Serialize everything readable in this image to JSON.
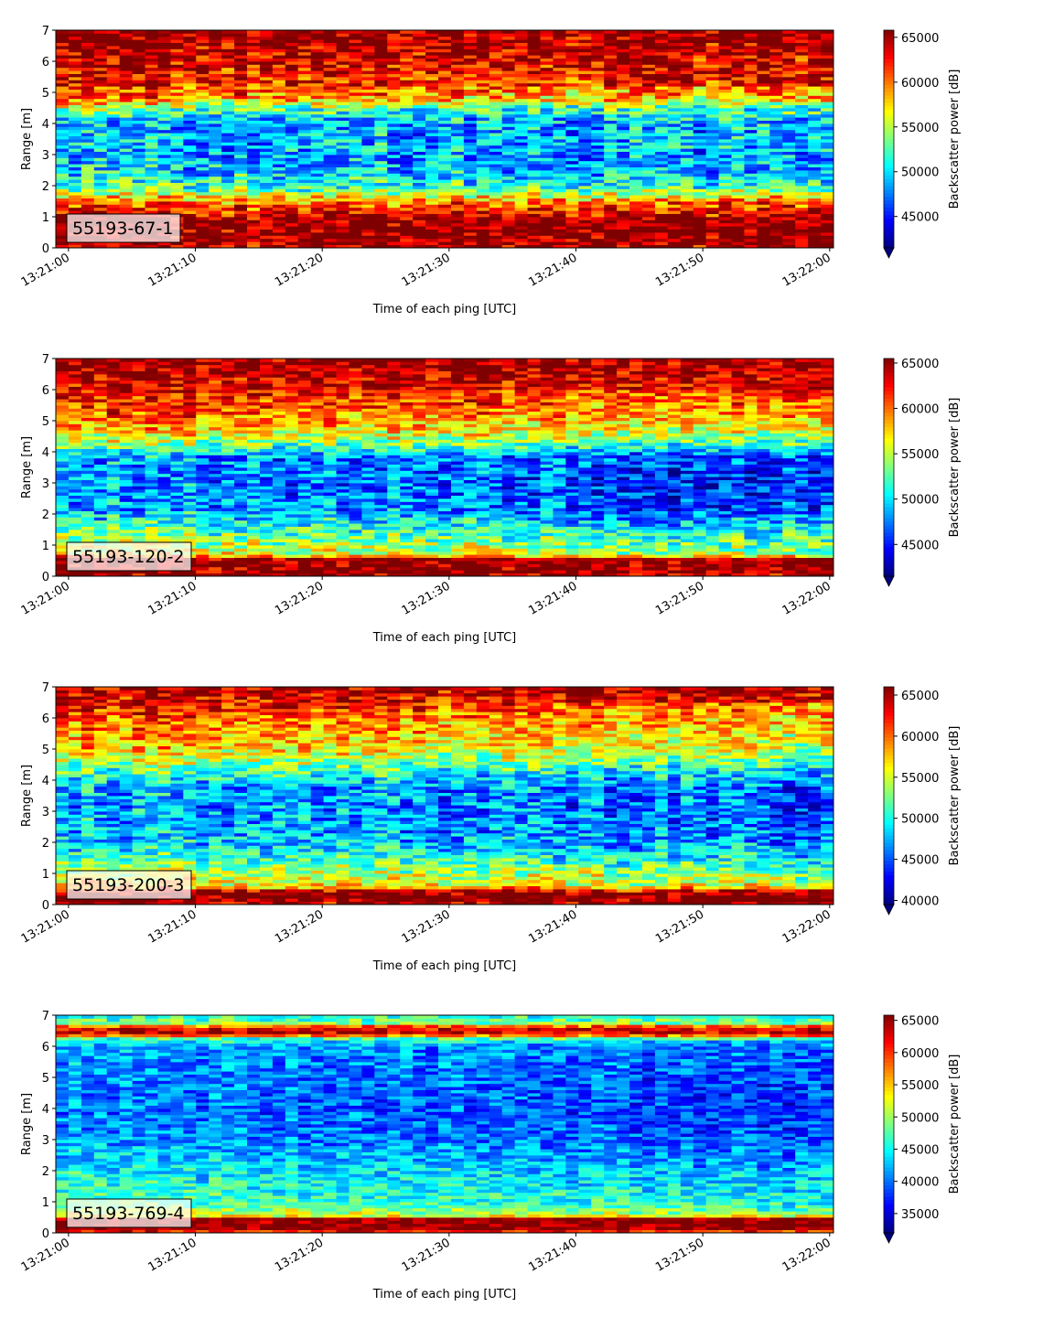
{
  "colormap": [
    "#00007f",
    "#0000ff",
    "#007fff",
    "#00ffff",
    "#7fff7f",
    "#ffff00",
    "#ff7f00",
    "#ff0000",
    "#7f0000"
  ],
  "chart_data": [
    {
      "type": "heatmap",
      "label_box": "55193-67-1",
      "xlabel": "Time of each ping [UTC]",
      "ylabel": "Range [m]",
      "colorbar_label": "Backscatter power [dB]",
      "x_ticks": [
        "13:21:00",
        "13:21:10",
        "13:21:20",
        "13:21:30",
        "13:21:40",
        "13:21:50",
        "13:22:00"
      ],
      "y_ticks": [
        0,
        1,
        2,
        3,
        4,
        5,
        6,
        7
      ],
      "ylim": [
        0,
        7
      ],
      "xlim_seconds": [
        -1,
        60.3
      ],
      "colorbar_ticks": [
        45000,
        50000,
        55000,
        60000,
        65000
      ],
      "vmin": 41500,
      "vmax": 65800,
      "colorbar_extend": "min",
      "profile": [
        [
          0.0,
          0.95
        ],
        [
          0.3,
          1.0
        ],
        [
          0.9,
          1.0
        ],
        [
          1.1,
          0.9
        ],
        [
          1.5,
          0.75
        ],
        [
          1.9,
          0.45
        ],
        [
          2.4,
          0.35
        ],
        [
          3.0,
          0.3
        ],
        [
          3.6,
          0.3
        ],
        [
          4.1,
          0.3
        ],
        [
          4.4,
          0.45
        ],
        [
          4.8,
          0.75
        ],
        [
          5.3,
          0.85
        ],
        [
          5.8,
          0.9
        ],
        [
          6.4,
          0.95
        ],
        [
          7.0,
          1.0
        ]
      ],
      "trend": [
        [
          0.3,
          3.5,
          0.0
        ],
        [
          2.0,
          3.0,
          -0.05
        ],
        [
          4.4,
          5.2,
          -0.1
        ]
      ],
      "noise": 0.22
    },
    {
      "type": "heatmap",
      "label_box": "55193-120-2",
      "xlabel": "Time of each ping [UTC]",
      "ylabel": "Range [m]",
      "colorbar_label": "Backscatter power [dB]",
      "x_ticks": [
        "13:21:00",
        "13:21:10",
        "13:21:20",
        "13:21:30",
        "13:21:40",
        "13:21:50",
        "13:22:00"
      ],
      "y_ticks": [
        0,
        1,
        2,
        3,
        4,
        5,
        6,
        7
      ],
      "ylim": [
        0,
        7
      ],
      "xlim_seconds": [
        -1,
        60.3
      ],
      "colorbar_ticks": [
        45000,
        50000,
        55000,
        60000,
        65000
      ],
      "vmin": 41500,
      "vmax": 65500,
      "colorbar_extend": "min",
      "profile": [
        [
          0.0,
          0.95
        ],
        [
          0.15,
          1.0
        ],
        [
          0.55,
          1.0
        ],
        [
          0.7,
          0.65
        ],
        [
          1.2,
          0.55
        ],
        [
          1.6,
          0.45
        ],
        [
          2.2,
          0.3
        ],
        [
          3.0,
          0.28
        ],
        [
          3.8,
          0.3
        ],
        [
          4.2,
          0.5
        ],
        [
          4.7,
          0.7
        ],
        [
          5.3,
          0.82
        ],
        [
          6.0,
          0.9
        ],
        [
          6.5,
          0.95
        ],
        [
          7.0,
          1.0
        ]
      ],
      "trend": [
        [
          0.6,
          4.0,
          -0.12
        ],
        [
          4.0,
          6.0,
          -0.1
        ]
      ],
      "noise": 0.2
    },
    {
      "type": "heatmap",
      "label_box": "55193-200-3",
      "xlabel": "Time of each ping [UTC]",
      "ylabel": "Range [m]",
      "colorbar_label": "Backscatter power [dB]",
      "x_ticks": [
        "13:21:00",
        "13:21:10",
        "13:21:20",
        "13:21:30",
        "13:21:40",
        "13:21:50",
        "13:22:00"
      ],
      "y_ticks": [
        0,
        1,
        2,
        3,
        4,
        5,
        6,
        7
      ],
      "ylim": [
        0,
        7
      ],
      "xlim_seconds": [
        -1,
        60.3
      ],
      "colorbar_ticks": [
        40000,
        45000,
        50000,
        55000,
        60000,
        65000
      ],
      "vmin": 39500,
      "vmax": 66000,
      "colorbar_extend": "min",
      "profile": [
        [
          0.0,
          0.9
        ],
        [
          0.1,
          1.0
        ],
        [
          0.4,
          1.0
        ],
        [
          0.55,
          0.7
        ],
        [
          1.0,
          0.6
        ],
        [
          1.5,
          0.45
        ],
        [
          2.0,
          0.35
        ],
        [
          3.0,
          0.3
        ],
        [
          3.8,
          0.32
        ],
        [
          4.4,
          0.5
        ],
        [
          5.0,
          0.68
        ],
        [
          5.8,
          0.78
        ],
        [
          6.4,
          0.88
        ],
        [
          7.0,
          0.95
        ]
      ],
      "trend": [
        [
          0.6,
          4.0,
          -0.1
        ],
        [
          4.0,
          6.5,
          -0.12
        ]
      ],
      "noise": 0.2
    },
    {
      "type": "heatmap",
      "label_box": "55193-769-4",
      "xlabel": "Time of each ping [UTC]",
      "ylabel": "Range [m]",
      "colorbar_label": "Backscatter power [dB]",
      "x_ticks": [
        "13:21:00",
        "13:21:10",
        "13:21:20",
        "13:21:30",
        "13:21:40",
        "13:21:50",
        "13:22:00"
      ],
      "y_ticks": [
        0,
        1,
        2,
        3,
        4,
        5,
        6,
        7
      ],
      "ylim": [
        0,
        7
      ],
      "xlim_seconds": [
        -1,
        60.3
      ],
      "colorbar_ticks": [
        35000,
        40000,
        45000,
        50000,
        55000,
        60000,
        65000
      ],
      "vmin": 32000,
      "vmax": 65800,
      "colorbar_extend": "min",
      "profile": [
        [
          0.0,
          0.6
        ],
        [
          0.08,
          1.0
        ],
        [
          0.45,
          1.0
        ],
        [
          0.55,
          0.62
        ],
        [
          1.0,
          0.45
        ],
        [
          1.5,
          0.42
        ],
        [
          2.0,
          0.38
        ],
        [
          3.0,
          0.28
        ],
        [
          4.0,
          0.25
        ],
        [
          5.0,
          0.27
        ],
        [
          6.0,
          0.3
        ],
        [
          6.25,
          0.45
        ],
        [
          6.4,
          0.92
        ],
        [
          6.6,
          0.9
        ],
        [
          6.75,
          0.5
        ],
        [
          7.0,
          0.4
        ]
      ],
      "trend": [
        [
          0.6,
          6.2,
          -0.08
        ]
      ],
      "noise": 0.15
    }
  ]
}
